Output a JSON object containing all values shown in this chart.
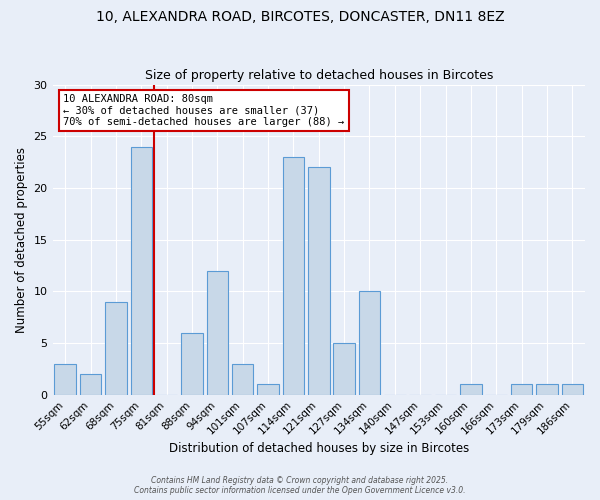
{
  "title": "10, ALEXANDRA ROAD, BIRCOTES, DONCASTER, DN11 8EZ",
  "subtitle": "Size of property relative to detached houses in Bircotes",
  "xlabel": "Distribution of detached houses by size in Bircotes",
  "ylabel": "Number of detached properties",
  "bin_labels": [
    "55sqm",
    "62sqm",
    "68sqm",
    "75sqm",
    "81sqm",
    "88sqm",
    "94sqm",
    "101sqm",
    "107sqm",
    "114sqm",
    "121sqm",
    "127sqm",
    "134sqm",
    "140sqm",
    "147sqm",
    "153sqm",
    "160sqm",
    "166sqm",
    "173sqm",
    "179sqm",
    "186sqm"
  ],
  "bar_values": [
    3,
    2,
    9,
    24,
    0,
    6,
    12,
    3,
    1,
    23,
    22,
    5,
    10,
    0,
    0,
    0,
    1,
    0,
    1,
    1,
    1
  ],
  "bar_color": "#c8d8e8",
  "bar_edge_color": "#5b9bd5",
  "vline_color": "#cc0000",
  "vline_x_idx": 4,
  "ylim": [
    0,
    30
  ],
  "yticks": [
    0,
    5,
    10,
    15,
    20,
    25,
    30
  ],
  "annotation_title": "10 ALEXANDRA ROAD: 80sqm",
  "annotation_line1": "← 30% of detached houses are smaller (37)",
  "annotation_line2": "70% of semi-detached houses are larger (88) →",
  "annotation_box_color": "#ffffff",
  "annotation_box_edge": "#cc0000",
  "footer1": "Contains HM Land Registry data © Crown copyright and database right 2025.",
  "footer2": "Contains public sector information licensed under the Open Government Licence v3.0.",
  "background_color": "#e8eef8",
  "plot_bg_color": "#e8eef8",
  "grid_color": "#ffffff"
}
